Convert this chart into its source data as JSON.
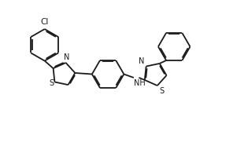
{
  "background_color": "#ffffff",
  "line_color": "#1a1a1a",
  "line_width": 1.3,
  "fig_width": 3.01,
  "fig_height": 1.95,
  "dpi": 100,
  "xlim": [
    0,
    10
  ],
  "ylim": [
    0,
    6.5
  ]
}
